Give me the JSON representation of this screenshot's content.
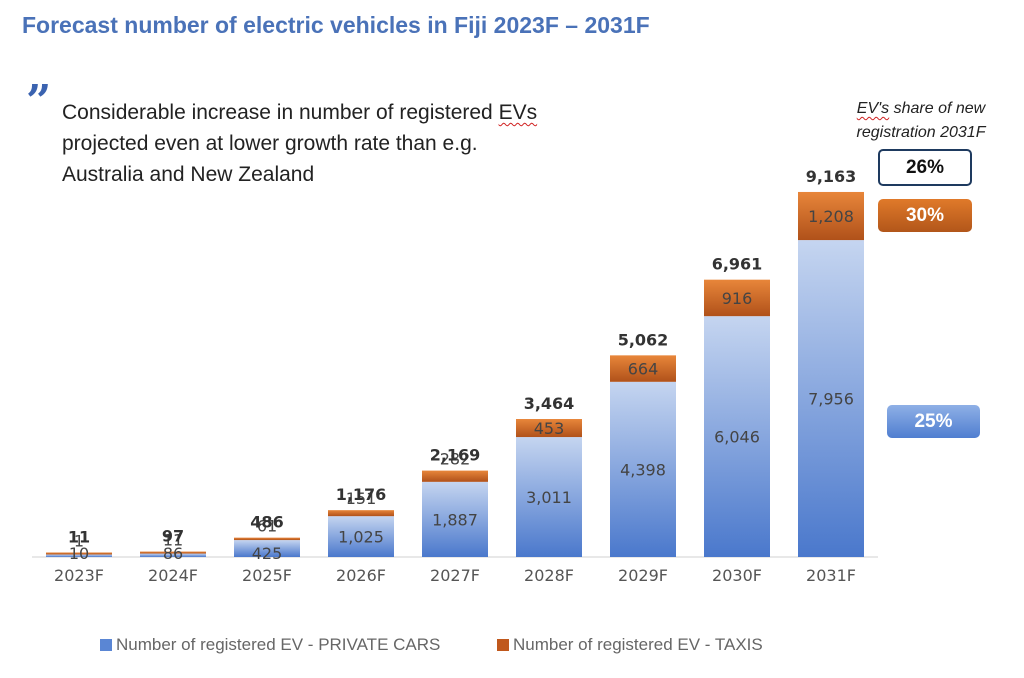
{
  "title": "Forecast number of electric vehicles in Fiji 2023F – 2031F",
  "quote_mark": "”",
  "callout": {
    "line1_pre": "Considerable increase in number of registered ",
    "line1_evs": "EVs",
    "line2": "projected even at lower growth rate than e.g.",
    "line3": "Australia and New Zealand"
  },
  "share_caption": {
    "evs": "EV's",
    "line1_rest": " share of new",
    "line2": "registration 2031F"
  },
  "badges": {
    "total": "26%",
    "taxis": "30%",
    "private": "25%"
  },
  "colors": {
    "title": "#4a72b8",
    "private": "#5a86d4",
    "taxis": "#c0581c"
  },
  "chart_data": {
    "type": "bar",
    "stacked": true,
    "categories": [
      "2023F",
      "2024F",
      "2025F",
      "2026F",
      "2027F",
      "2028F",
      "2029F",
      "2030F",
      "2031F"
    ],
    "series": [
      {
        "name": "Number of registered EV - PRIVATE CARS",
        "values": [
          10,
          86,
          425,
          1025,
          1887,
          3011,
          4398,
          6046,
          7956
        ],
        "labels": [
          "10",
          "86",
          "425",
          "1,025",
          "1,887",
          "3,011",
          "4,398",
          "6,046",
          "7,956"
        ]
      },
      {
        "name": "Number of registered EV - TAXIS",
        "values": [
          1,
          11,
          61,
          151,
          282,
          453,
          664,
          916,
          1208
        ],
        "labels": [
          "1",
          "11",
          "61",
          "151",
          "282",
          "453",
          "664",
          "916",
          "1,208"
        ]
      }
    ],
    "totals": [
      "11",
      "97",
      "486",
      "1,176",
      "2,169",
      "3,464",
      "5,062",
      "6,961",
      "9,163"
    ],
    "ylim": [
      0,
      9163
    ],
    "legend": "bottom"
  },
  "legend": {
    "private": "Number of registered EV - PRIVATE CARS",
    "taxis": "Number of registered EV - TAXIS"
  }
}
